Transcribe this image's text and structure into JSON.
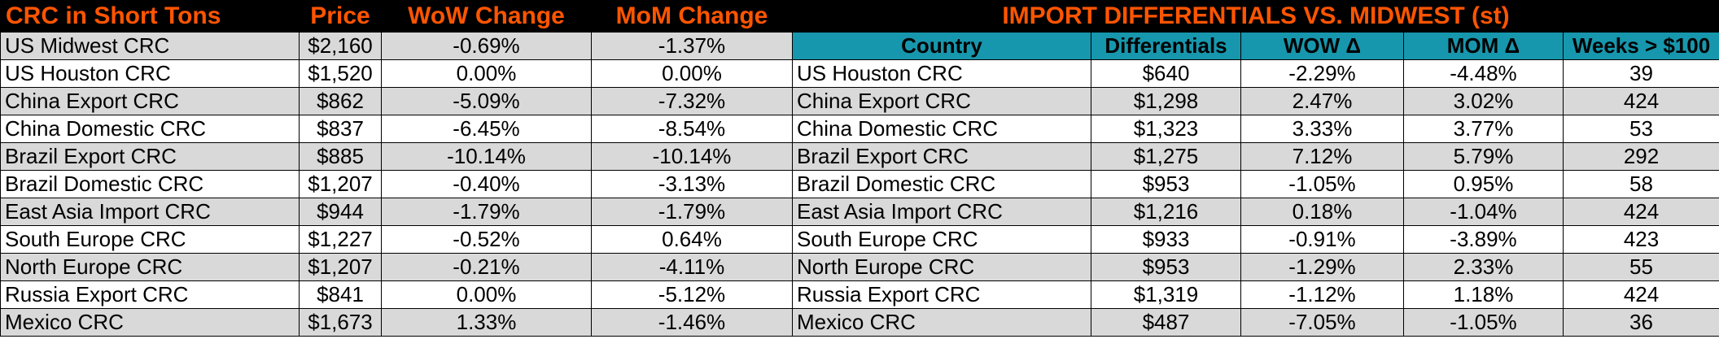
{
  "left_table": {
    "headers": [
      "CRC in Short Tons",
      "Price",
      "WoW Change",
      "MoM Change"
    ],
    "rows": [
      [
        "US Midwest CRC",
        "$2,160",
        "-0.69%",
        "-1.37%"
      ],
      [
        "US Houston CRC",
        "$1,520",
        "0.00%",
        "0.00%"
      ],
      [
        "China Export CRC",
        "$862",
        "-5.09%",
        "-7.32%"
      ],
      [
        "China Domestic CRC",
        "$837",
        "-6.45%",
        "-8.54%"
      ],
      [
        "Brazil Export CRC",
        "$885",
        "-10.14%",
        "-10.14%"
      ],
      [
        "Brazil Domestic CRC",
        "$1,207",
        "-0.40%",
        "-3.13%"
      ],
      [
        "East Asia Import CRC",
        "$944",
        "-1.79%",
        "-1.79%"
      ],
      [
        "South Europe CRC",
        "$1,227",
        "-0.52%",
        "0.64%"
      ],
      [
        "North Europe CRC",
        "$1,207",
        "-0.21%",
        "-4.11%"
      ],
      [
        "Russia Export CRC",
        "$841",
        "0.00%",
        "-5.12%"
      ],
      [
        "Mexico CRC",
        "$1,673",
        "1.33%",
        "-1.46%"
      ]
    ]
  },
  "right_table": {
    "title": "IMPORT DIFFERENTIALS VS. MIDWEST (st)",
    "headers": [
      "Country",
      "Differentials",
      "WOW Δ",
      "MOM Δ",
      "Weeks > $100"
    ],
    "rows": [
      [
        "US Houston CRC",
        "$640",
        "-2.29%",
        "-4.48%",
        "39"
      ],
      [
        "China Export CRC",
        "$1,298",
        "2.47%",
        "3.02%",
        "424"
      ],
      [
        "China Domestic CRC",
        "$1,323",
        "3.33%",
        "3.77%",
        "53"
      ],
      [
        "Brazil Export CRC",
        "$1,275",
        "7.12%",
        "5.79%",
        "292"
      ],
      [
        "Brazil Domestic CRC",
        "$953",
        "-1.05%",
        "0.95%",
        "58"
      ],
      [
        "East Asia Import CRC",
        "$1,216",
        "0.18%",
        "-1.04%",
        "424"
      ],
      [
        "South Europe CRC",
        "$933",
        "-0.91%",
        "-3.89%",
        "423"
      ],
      [
        "North Europe CRC",
        "$953",
        "-1.29%",
        "2.33%",
        "55"
      ],
      [
        "Russia Export CRC",
        "$1,319",
        "-1.12%",
        "1.18%",
        "424"
      ],
      [
        "Mexico CRC",
        "$487",
        "-7.05%",
        "-1.05%",
        "36"
      ]
    ]
  },
  "colors": {
    "header_bg": "#000000",
    "header_text": "#ff5500",
    "subheader_bg": "#1797ad",
    "row_shade": "#d9d9d9",
    "row_plain": "#ffffff"
  }
}
